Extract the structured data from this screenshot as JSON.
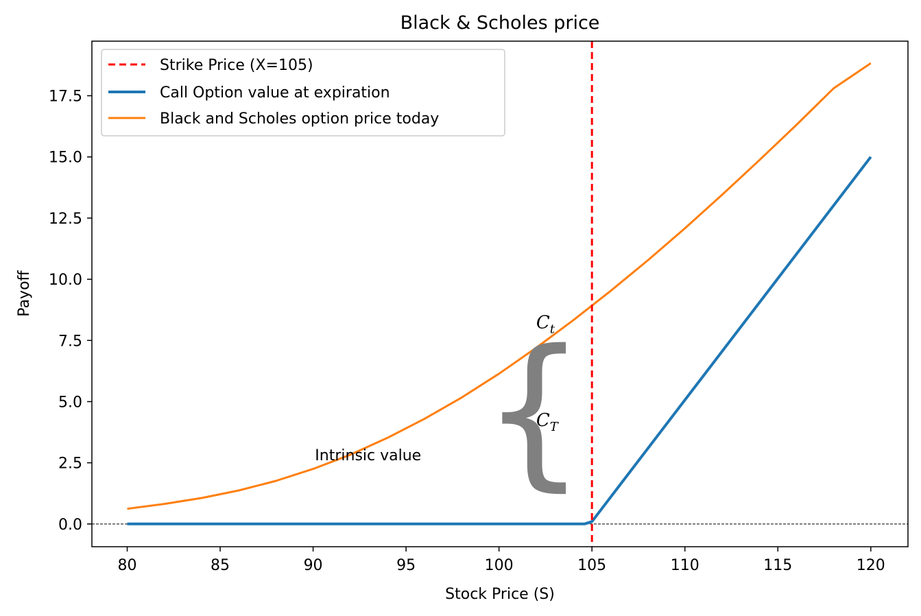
{
  "chart_data": {
    "type": "line",
    "title": "Black & Scholes price",
    "xlabel": "Stock Price (S)",
    "ylabel": "Payoff",
    "xlim": [
      78.1,
      122.0
    ],
    "ylim": [
      -0.93,
      19.73
    ],
    "xticks": [
      80,
      85,
      90,
      95,
      100,
      105,
      110,
      115,
      120
    ],
    "yticks": [
      0.0,
      2.5,
      5.0,
      7.5,
      10.0,
      12.5,
      15.0,
      17.5
    ],
    "xtick_labels": [
      "80",
      "85",
      "90",
      "95",
      "100",
      "105",
      "110",
      "115",
      "120"
    ],
    "ytick_labels": [
      "0.0",
      "2.5",
      "5.0",
      "7.5",
      "10.0",
      "12.5",
      "15.0",
      "17.5"
    ],
    "grid": false,
    "legend_position": "top-left",
    "strike": {
      "name": "Strike Price (X=105)",
      "x": 105,
      "color": "#ff0000",
      "style": "dashed"
    },
    "baseline": {
      "y": 0,
      "color": "#000000",
      "style": "dashed"
    },
    "series": [
      {
        "name": "Call Option value at expiration",
        "color": "#1f77b4",
        "x": [
          80,
          104.6,
          105,
          120
        ],
        "y": [
          0,
          0,
          0.1,
          15.0
        ]
      },
      {
        "name": "Black and Scholes option price today",
        "color": "#ff7f0e",
        "x": [
          80,
          82,
          84,
          86,
          88,
          90,
          92,
          94,
          96,
          98,
          100,
          102,
          104,
          106,
          108,
          110,
          112,
          114,
          116,
          118,
          120
        ],
        "y": [
          0.62,
          0.82,
          1.06,
          1.37,
          1.76,
          2.25,
          2.83,
          3.52,
          4.3,
          5.17,
          6.14,
          7.2,
          8.33,
          9.52,
          10.77,
          12.08,
          13.45,
          14.86,
          16.31,
          17.8,
          18.83
        ]
      }
    ],
    "annotations": [
      {
        "name": "intrinsic-value",
        "text": "Intrinsic value",
        "x": 90.1,
        "y": 2.6
      },
      {
        "name": "ct-label",
        "text": "C",
        "sub": "t",
        "x": 102.0,
        "y": 8.0
      },
      {
        "name": "cT-label",
        "text": "C",
        "sub": "T",
        "x": 102.0,
        "y": 4.0
      },
      {
        "name": "brace",
        "text": "{",
        "x": 104.7,
        "y": 4.17,
        "color": "#808080"
      }
    ]
  }
}
